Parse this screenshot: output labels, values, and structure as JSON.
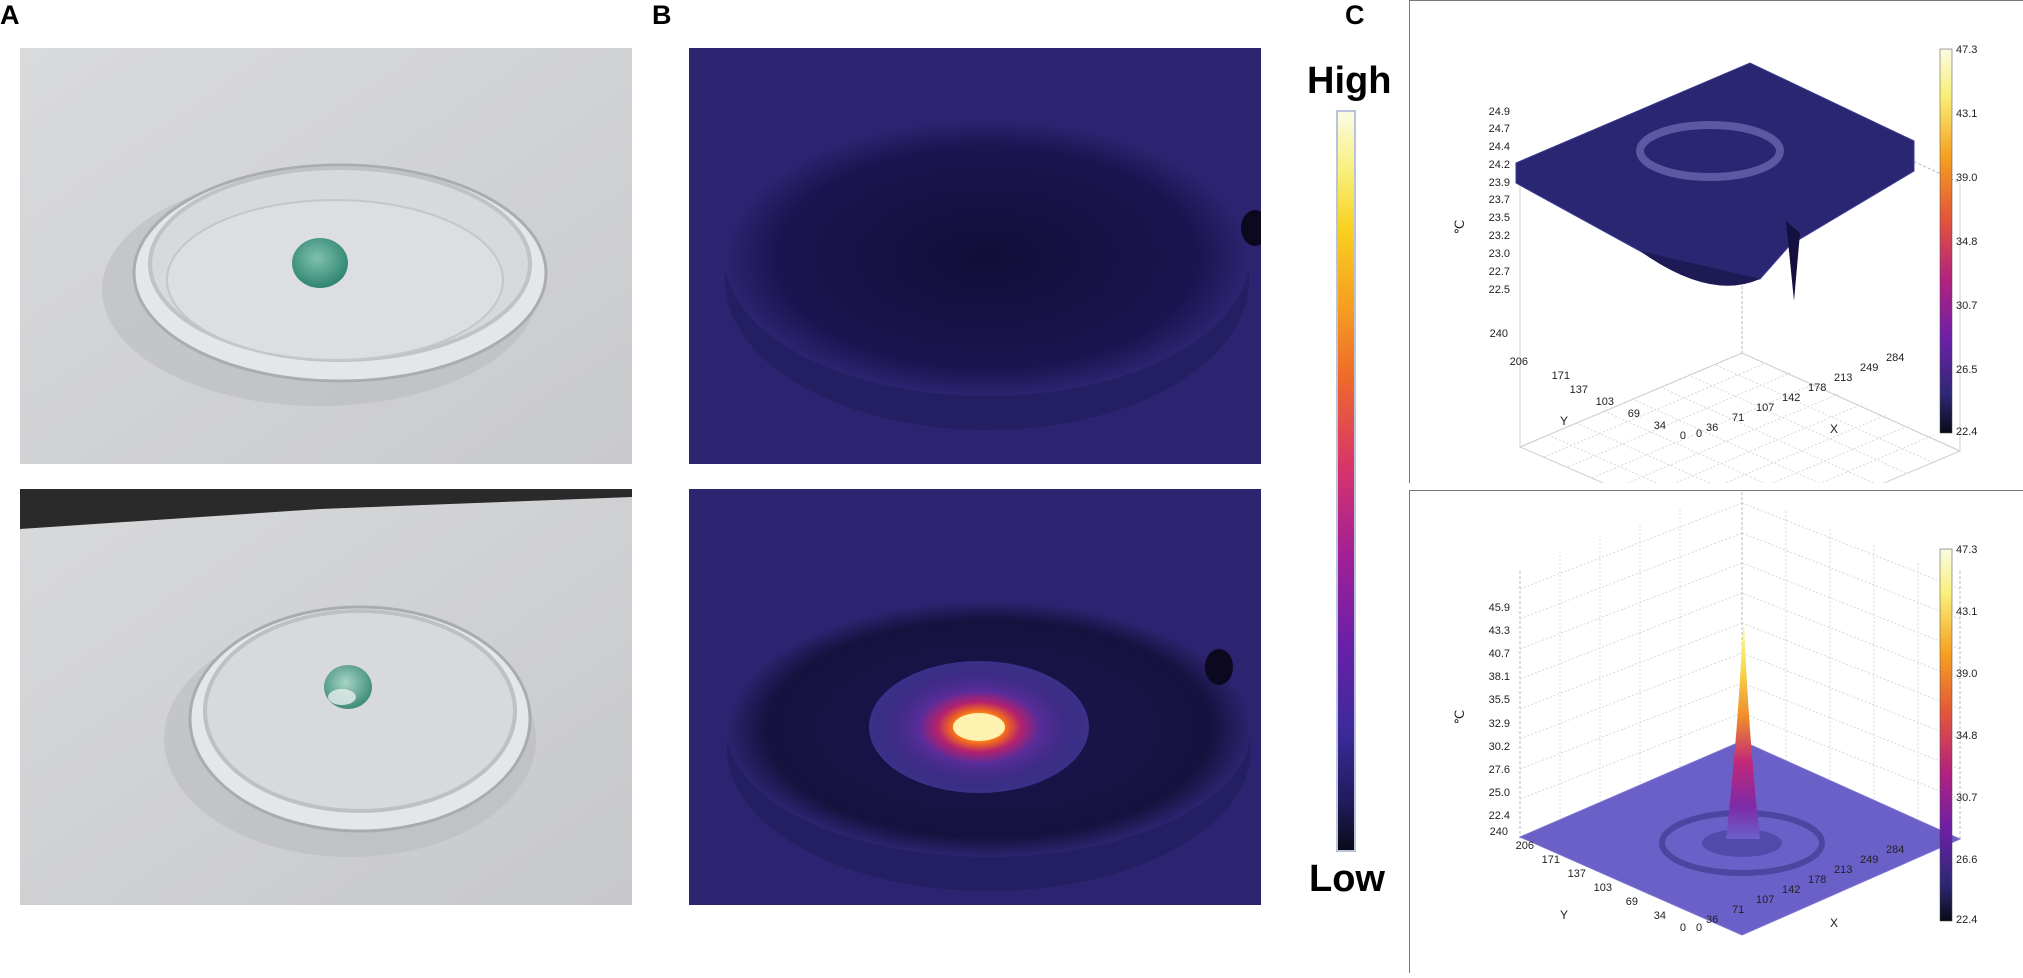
{
  "panels": {
    "a_letter": "A",
    "b_letter": "B",
    "c_letter": "C"
  },
  "scale": {
    "high": "High",
    "low": "Low"
  },
  "plots": [
    {
      "zlabel": "℃",
      "xlabel": "X",
      "ylabel": "Y",
      "z_ticks": [
        "24.9",
        "24.7",
        "24.4",
        "24.2",
        "23.9",
        "23.7",
        "23.5",
        "23.2",
        "23.0",
        "22.7",
        "22.5"
      ],
      "y_ticks": [
        "240",
        "206",
        "171",
        "137",
        "103",
        "69",
        "34",
        "0"
      ],
      "x_ticks": [
        "0",
        "36",
        "71",
        "107",
        "142",
        "178",
        "213",
        "249",
        "284"
      ],
      "cbar_ticks": [
        "47.3",
        "43.1",
        "39.0",
        "34.8",
        "30.7",
        "26.5",
        "22.4"
      ]
    },
    {
      "zlabel": "℃",
      "xlabel": "X",
      "ylabel": "Y",
      "z_ticks": [
        "45.9",
        "43.3",
        "40.7",
        "38.1",
        "35.5",
        "32.9",
        "30.2",
        "27.6",
        "25.0",
        "22.4"
      ],
      "y_ticks": [
        "240",
        "206",
        "171",
        "137",
        "103",
        "69",
        "34",
        "0"
      ],
      "x_ticks": [
        "0",
        "36",
        "71",
        "107",
        "142",
        "178",
        "213",
        "249",
        "284"
      ],
      "cbar_ticks": [
        "47.3",
        "43.1",
        "39.0",
        "34.8",
        "30.7",
        "26.6",
        "22.4"
      ]
    }
  ],
  "colors": {
    "thermal_bg": "#2c2470",
    "thermal_dark": "#14103d",
    "surface_top": "#2e2a7a",
    "surface_bottom": "#6a60c8"
  }
}
